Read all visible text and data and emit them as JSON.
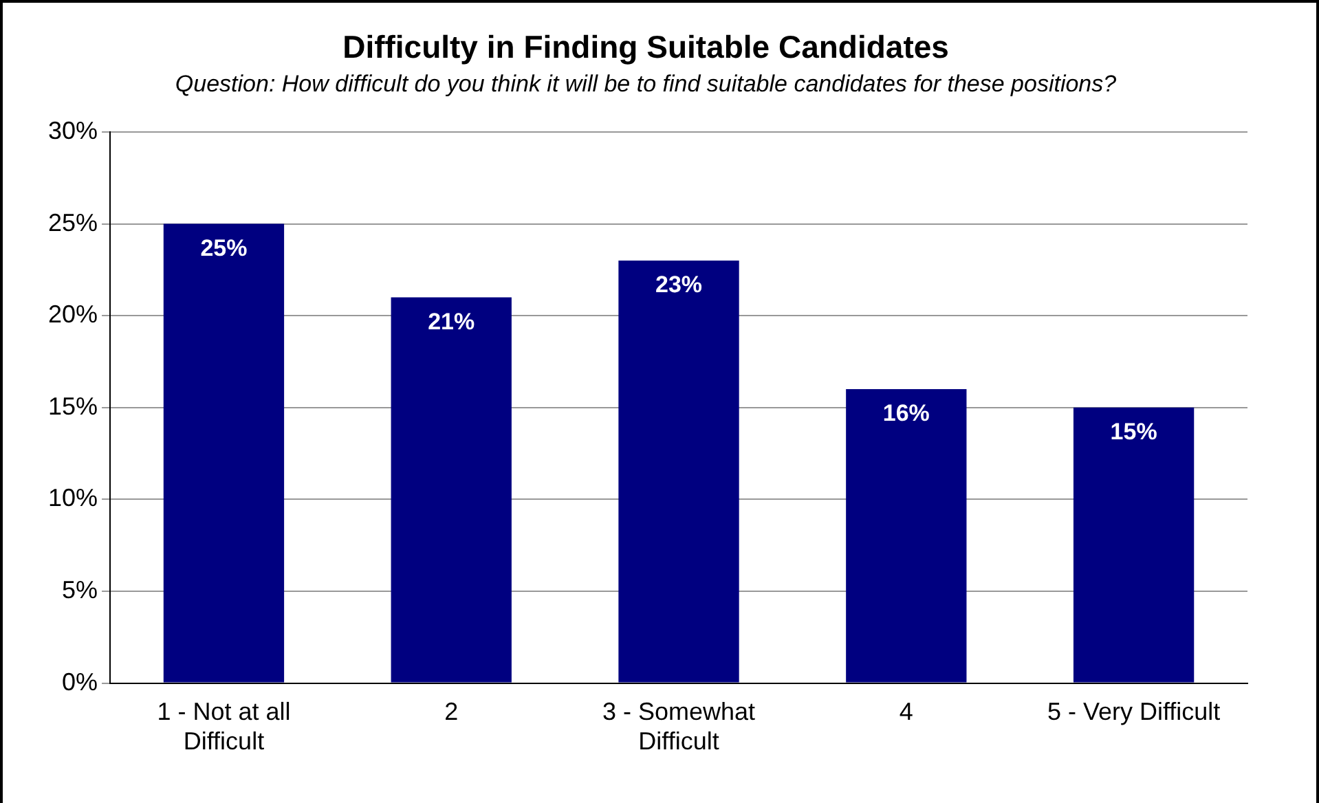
{
  "chart_data": {
    "type": "bar",
    "title": "Difficulty in Finding Suitable Candidates",
    "subtitle": "Question: How difficult do you think it will be to find suitable candidates for these positions?",
    "categories": [
      "1 - Not at all Difficult",
      "2",
      "3 - Somewhat Difficult",
      "4",
      "5 - Very Difficult"
    ],
    "values": [
      25,
      21,
      23,
      16,
      15
    ],
    "color": "#000080",
    "value_labels": [
      "25%",
      "21%",
      "23%",
      "16%",
      "15%"
    ],
    "ylim": [
      0,
      30
    ],
    "yticks": [
      {
        "value": 0,
        "label": "0%"
      },
      {
        "value": 5,
        "label": "5%"
      },
      {
        "value": 10,
        "label": "10%"
      },
      {
        "value": 15,
        "label": "15%"
      },
      {
        "value": 20,
        "label": "20%"
      },
      {
        "value": 25,
        "label": "25%"
      },
      {
        "value": 30,
        "label": "30%"
      }
    ],
    "grid": "y",
    "legend": false
  }
}
